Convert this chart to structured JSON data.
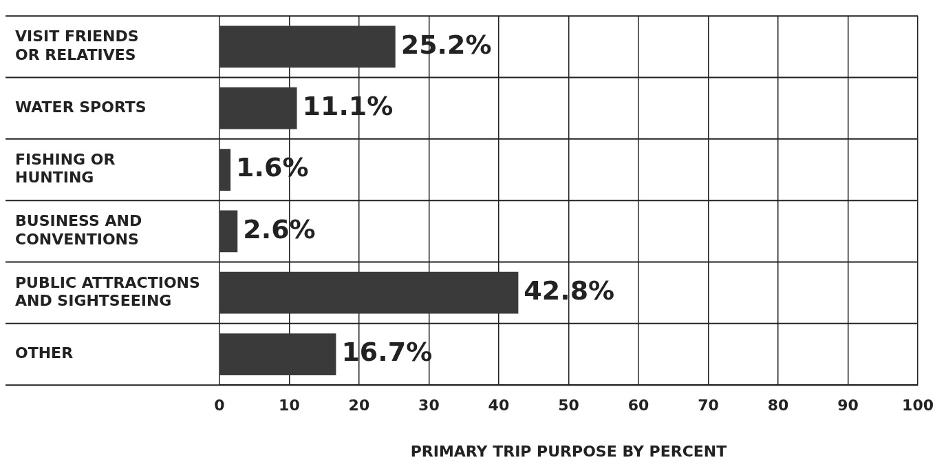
{
  "chart_data": {
    "type": "bar",
    "orientation": "horizontal",
    "xlabel": "PRIMARY TRIP PURPOSE BY PERCENT",
    "categories": [
      "VISIT FRIENDS\nOR RELATIVES",
      "WATER SPORTS",
      "FISHING OR\nHUNTING",
      "BUSINESS AND\nCONVENTIONS",
      "PUBLIC ATTRACTIONS\nAND SIGHTSEEING",
      "OTHER"
    ],
    "values": [
      25.2,
      11.1,
      1.6,
      2.6,
      42.8,
      16.7
    ],
    "value_labels": [
      "25.2%",
      "11.1%",
      "1.6%",
      "2.6%",
      "42.8%",
      "16.7%"
    ],
    "color": "#3a3a3a",
    "xlim": [
      0,
      100
    ],
    "xticks": [
      0,
      10,
      20,
      30,
      40,
      50,
      60,
      70,
      80,
      90,
      100
    ],
    "grid": true,
    "legend": false
  }
}
